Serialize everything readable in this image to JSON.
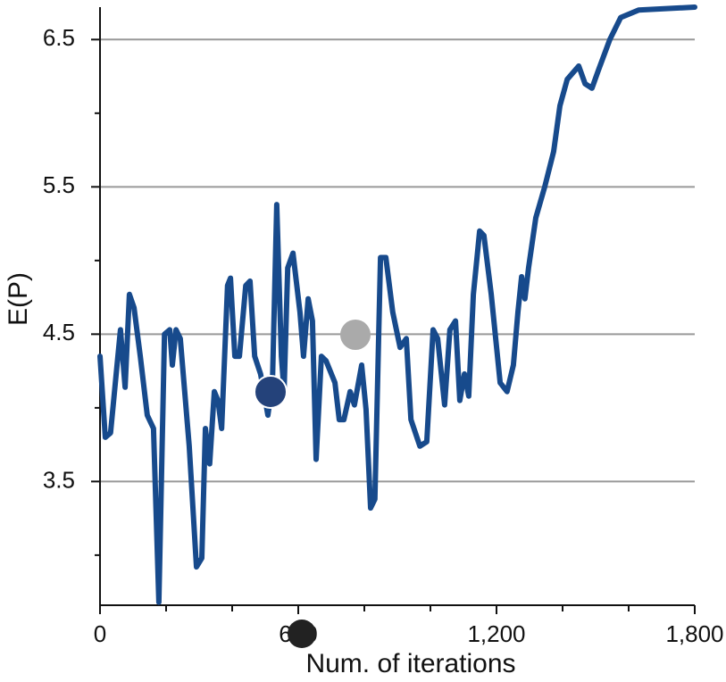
{
  "chart_data": {
    "type": "line",
    "x_label": "Num. of iterations",
    "y_label": "E(P)",
    "x": [
      0,
      16,
      32,
      54,
      62,
      76,
      89,
      103,
      122,
      143,
      162,
      178,
      195,
      211,
      219,
      230,
      243,
      270,
      292,
      308,
      319,
      332,
      346,
      357,
      368,
      386,
      395,
      408,
      422,
      441,
      454,
      468,
      486,
      508,
      522,
      535,
      549,
      557,
      568,
      584,
      605,
      616,
      630,
      643,
      654,
      670,
      684,
      711,
      724,
      738,
      757,
      770,
      792,
      805,
      819,
      832,
      849,
      865,
      886,
      908,
      927,
      941,
      968,
      989,
      1008,
      1022,
      1043,
      1059,
      1076,
      1089,
      1103,
      1116,
      1130,
      1149,
      1162,
      1184,
      1211,
      1232,
      1251,
      1265,
      1276,
      1286,
      1297,
      1319,
      1346,
      1373,
      1392,
      1414,
      1449,
      1468,
      1489,
      1508,
      1543,
      1576,
      1630,
      1800
    ],
    "series": [
      {
        "name": "E(P)",
        "color": "#174a8c",
        "values": [
          4.35,
          3.8,
          3.83,
          4.35,
          4.53,
          4.14,
          4.77,
          4.68,
          4.35,
          3.95,
          3.86,
          2.68,
          4.5,
          4.53,
          4.29,
          4.53,
          4.47,
          3.74,
          2.92,
          2.98,
          3.86,
          3.62,
          4.11,
          4.05,
          3.86,
          4.83,
          4.88,
          4.35,
          4.35,
          4.83,
          4.86,
          4.35,
          4.23,
          3.95,
          4.17,
          5.38,
          4.35,
          4.11,
          4.95,
          5.05,
          4.65,
          4.35,
          4.74,
          4.59,
          3.65,
          4.35,
          4.32,
          4.17,
          3.92,
          3.92,
          4.11,
          4.02,
          4.29,
          3.99,
          3.32,
          3.38,
          5.02,
          5.02,
          4.65,
          4.41,
          4.47,
          3.92,
          3.74,
          3.77,
          4.53,
          4.47,
          4.02,
          4.53,
          4.59,
          4.05,
          4.23,
          4.08,
          4.77,
          5.2,
          5.17,
          4.77,
          4.17,
          4.11,
          4.29,
          4.65,
          4.89,
          4.74,
          4.95,
          5.29,
          5.5,
          5.74,
          6.05,
          6.23,
          6.32,
          6.2,
          6.17,
          6.29,
          6.5,
          6.65,
          6.7,
          6.72
        ]
      }
    ],
    "xlim": [
      0,
      1800
    ],
    "ylim": [
      2.66,
      6.72
    ],
    "xticks": [
      0,
      600,
      {
        "value": 1200,
        "label": "1,200"
      },
      {
        "value": 1800,
        "label": "1,800"
      }
    ],
    "xticks_minor": [
      200,
      400,
      800,
      1000,
      1400,
      1600
    ],
    "yticks": [
      3.5,
      4.5,
      5.5,
      6.5
    ],
    "yticks_minor": [
      3,
      4,
      5,
      6
    ],
    "grid": true
  }
}
